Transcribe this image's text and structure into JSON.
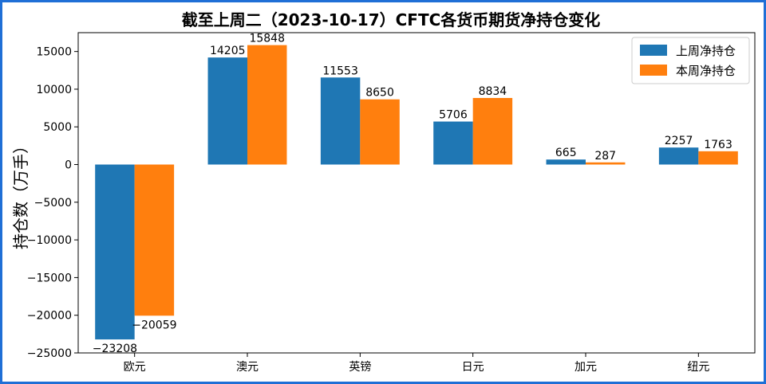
{
  "chart_data": {
    "type": "bar",
    "title": "截至上周二（2023-10-17）CFTC各货币期货净持仓变化",
    "xlabel": "",
    "ylabel": "持仓数（万手）",
    "categories": [
      "欧元",
      "澳元",
      "英镑",
      "日元",
      "加元",
      "纽元"
    ],
    "series": [
      {
        "name": "上周净持仓",
        "color": "#1f77b4",
        "values": [
          -23208,
          14205,
          11553,
          5706,
          665,
          2257
        ],
        "labels": [
          "−23208",
          "14205",
          "11553",
          "5706",
          "665",
          "2257"
        ]
      },
      {
        "name": "本周净持仓",
        "color": "#ff7f0e",
        "values": [
          -20059,
          15848,
          8650,
          8834,
          287,
          1763
        ],
        "labels": [
          "−20059",
          "15848",
          "8650",
          "8834",
          "287",
          "1763"
        ]
      }
    ],
    "ylim": [
      -25000,
      17500
    ],
    "yticks": [
      -25000,
      -20000,
      -15000,
      -10000,
      -5000,
      0,
      5000,
      10000,
      15000
    ],
    "ytick_labels": [
      "−25000",
      "−20000",
      "−15000",
      "−10000",
      "−5000",
      "0",
      "5000",
      "10000",
      "15000"
    ],
    "grid": false,
    "legend_position": "top-right"
  }
}
